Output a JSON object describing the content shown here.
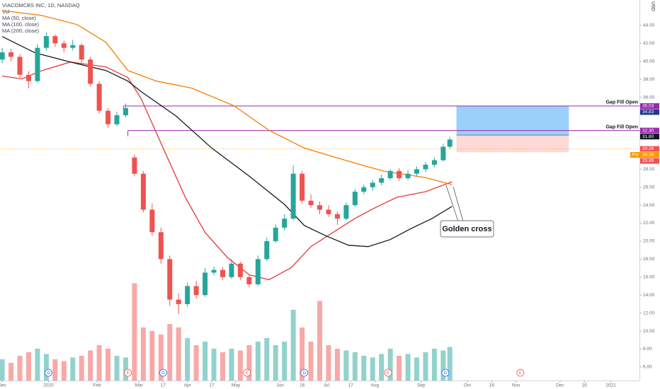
{
  "chart_data": {
    "type": "candlestick",
    "title": "VIACOMCBS INC, 1D, NASDAQ",
    "currency": "USD",
    "xlim": [
      -1,
      289
    ],
    "ylim": [
      4.5,
      46.82
    ],
    "xticks": [
      {
        "value": 0,
        "label": "Dec"
      },
      {
        "value": 21,
        "label": "2020"
      },
      {
        "value": 43,
        "label": "Feb"
      },
      {
        "value": 62,
        "label": "Mar"
      },
      {
        "value": 73,
        "label": "17"
      },
      {
        "value": 84,
        "label": "Apr"
      },
      {
        "value": 95,
        "label": "17"
      },
      {
        "value": 106,
        "label": "May"
      },
      {
        "value": 126,
        "label": "Jun"
      },
      {
        "value": 136,
        "label": "16"
      },
      {
        "value": 147,
        "label": "Jul"
      },
      {
        "value": 158,
        "label": "17"
      },
      {
        "value": 169,
        "label": "Aug"
      },
      {
        "value": 190,
        "label": "Sep"
      },
      {
        "value": 211,
        "label": "Oct"
      },
      {
        "value": 222,
        "label": "16"
      },
      {
        "value": 233,
        "label": "Nov"
      },
      {
        "value": 253,
        "label": "Dec"
      },
      {
        "value": 264,
        "label": "16"
      },
      {
        "value": 276,
        "label": "2021"
      }
    ],
    "yticks": [
      {
        "value": 6,
        "label": "6.00"
      },
      {
        "value": 8,
        "label": "8.00"
      },
      {
        "value": 10,
        "label": "10.00"
      },
      {
        "value": 12,
        "label": "12.00"
      },
      {
        "value": 14,
        "label": "14.00"
      },
      {
        "value": 16,
        "label": "16.00"
      },
      {
        "value": 18,
        "label": "18.00"
      },
      {
        "value": 20,
        "label": "20.00"
      },
      {
        "value": 22,
        "label": "22.00"
      },
      {
        "value": 24,
        "label": "24.00"
      },
      {
        "value": 26,
        "label": "26.00"
      },
      {
        "value": 28,
        "label": "28.00"
      },
      {
        "value": 36,
        "label": "36.00"
      },
      {
        "value": 38,
        "label": "38.00"
      },
      {
        "value": 40,
        "label": "40.00"
      },
      {
        "value": 42,
        "label": "42.00"
      },
      {
        "value": 44,
        "label": "44.00"
      }
    ],
    "up_color": "#26a69a",
    "down_color": "#ef5350",
    "candles": {
      "x": [
        0,
        4,
        8,
        12,
        16,
        20,
        24,
        28,
        32,
        36,
        40,
        44,
        48,
        52,
        56,
        60,
        64,
        68,
        72,
        76,
        80,
        84,
        88,
        92,
        96,
        100,
        104,
        108,
        112,
        116,
        120,
        124,
        128,
        132,
        136,
        140,
        144,
        148,
        152,
        156,
        160,
        164,
        168,
        172,
        176,
        180,
        184,
        188,
        192,
        196,
        200,
        203
      ],
      "open": [
        40.2,
        41.0,
        40.5,
        38.5,
        37.8,
        41.5,
        42.8,
        42.0,
        41.5,
        41.8,
        40.2,
        37.5,
        34.5,
        33.0,
        34.0,
        29.3,
        27.5,
        23.5,
        21.0,
        18.0,
        13.5,
        13.0,
        15.0,
        14.0,
        16.5,
        16.8,
        16.0,
        17.5,
        16.0,
        15.2,
        18.0,
        20.0,
        21.5,
        22.5,
        27.5,
        24.5,
        24.0,
        23.5,
        23.0,
        22.5,
        24.0,
        25.5,
        26.0,
        26.5,
        27.0,
        27.8,
        27.0,
        27.5,
        28.0,
        28.5,
        29.0,
        30.5
      ],
      "high": [
        41.5,
        41.4,
        40.8,
        38.9,
        41.9,
        43.2,
        43.0,
        42.3,
        42.4,
        42.0,
        40.5,
        37.8,
        34.8,
        34.4,
        35.3,
        29.6,
        27.8,
        24.2,
        21.5,
        18.4,
        14.2,
        15.4,
        15.6,
        17.0,
        17.2,
        17.1,
        18.0,
        17.7,
        16.3,
        18.4,
        20.4,
        21.9,
        23.0,
        28.4,
        27.8,
        25.2,
        24.4,
        24.0,
        23.3,
        24.3,
        25.8,
        26.3,
        26.8,
        27.4,
        28.0,
        28.1,
        27.9,
        28.3,
        28.8,
        29.3,
        30.8,
        31.6
      ],
      "low": [
        39.8,
        40.0,
        38.2,
        37.0,
        37.6,
        41.2,
        41.6,
        41.0,
        41.2,
        39.8,
        37.2,
        34.2,
        32.6,
        32.8,
        33.8,
        27.2,
        23.2,
        20.6,
        17.5,
        12.8,
        11.9,
        12.7,
        13.6,
        13.8,
        16.2,
        15.7,
        15.8,
        15.7,
        14.9,
        15.0,
        17.8,
        19.8,
        21.2,
        22.3,
        24.2,
        23.7,
        23.0,
        22.7,
        21.8,
        22.3,
        23.8,
        25.2,
        25.6,
        26.2,
        26.8,
        26.7,
        26.8,
        27.2,
        27.7,
        28.2,
        28.9,
        30.3
      ],
      "close": [
        41.0,
        40.5,
        38.5,
        37.8,
        41.5,
        42.8,
        42.0,
        41.5,
        41.8,
        40.2,
        37.5,
        34.5,
        33.0,
        34.0,
        34.8,
        27.5,
        23.5,
        21.0,
        18.0,
        13.5,
        13.0,
        15.0,
        14.0,
        16.5,
        16.8,
        16.0,
        17.5,
        16.0,
        15.2,
        18.0,
        20.0,
        21.5,
        22.5,
        27.5,
        24.5,
        24.0,
        23.5,
        23.0,
        22.5,
        24.0,
        25.5,
        26.0,
        26.5,
        27.0,
        27.8,
        27.0,
        27.5,
        28.0,
        28.5,
        29.0,
        30.5,
        31.3
      ]
    },
    "volume": {
      "name": "Vol",
      "ylim": [
        0,
        60
      ],
      "values": [
        12,
        10,
        14,
        16,
        18,
        15,
        12,
        11,
        13,
        14,
        17,
        20,
        18,
        14,
        13,
        55,
        30,
        28,
        26,
        32,
        30,
        24,
        20,
        22,
        18,
        16,
        18,
        17,
        20,
        22,
        24,
        20,
        22,
        40,
        30,
        22,
        45,
        20,
        18,
        17,
        16,
        14,
        13,
        15,
        18,
        14,
        15,
        13,
        16,
        18,
        17,
        19
      ]
    },
    "series": [
      {
        "name": "MA (50, close)",
        "color": "#e53935",
        "x": [
          0,
          9,
          18,
          31,
          47,
          57,
          63,
          73,
          83,
          92,
          102,
          112,
          121,
          131,
          140,
          150,
          160,
          169,
          179,
          192,
          204
        ],
        "values": [
          38.36,
          38.04,
          38.98,
          39.92,
          39.38,
          38.2,
          35.85,
          30.36,
          24.88,
          20.96,
          18.22,
          16.26,
          15.71,
          17.04,
          19.39,
          20.96,
          22.53,
          23.7,
          24.88,
          25.5,
          26.6
        ]
      },
      {
        "name": "MA (100, close)",
        "color": "#131722",
        "x": [
          0,
          15,
          31,
          47,
          57,
          63,
          79,
          95,
          112,
          128,
          137,
          147,
          157,
          166,
          176,
          185,
          195,
          204
        ],
        "values": [
          42.75,
          40.94,
          39.92,
          38.98,
          37.8,
          36.63,
          33.89,
          30.36,
          27.23,
          24.09,
          21.74,
          20.57,
          19.55,
          19.39,
          20.18,
          21.35,
          22.53,
          23.86
        ]
      },
      {
        "name": "MA (200, close)",
        "color": "#f57c00",
        "x": [
          0,
          18,
          34,
          47,
          57,
          70,
          86,
          105,
          121,
          137,
          153,
          173,
          192,
          204
        ],
        "values": [
          45.65,
          45.1,
          44.08,
          42.12,
          38.98,
          37.8,
          37.02,
          35.07,
          32.33,
          30.36,
          29.18,
          27.78,
          27.07,
          26.29
        ]
      }
    ],
    "hlines": [
      {
        "value": 35.03,
        "label": "Gap Fill Open",
        "x_start": 55,
        "color": "#9c27b0"
      },
      {
        "value": 32.3,
        "label": "Gap Fill Open",
        "x_start": 57,
        "color": "#9c27b0"
      }
    ],
    "last_price": {
      "value": 30.26,
      "color": "#ff9800"
    },
    "position": {
      "x": [
        206,
        257
      ],
      "entry": 31.8,
      "target": 35.03,
      "stop": 29.89
    },
    "axis_labels": [
      {
        "value": 35.03,
        "label": "35.03",
        "color": "#9c27b0"
      },
      {
        "value": 34.83,
        "label": "34.83",
        "color": "#1e3a8a"
      },
      {
        "value": 32.3,
        "label": "32.30",
        "color": "#9c27b0"
      },
      {
        "value": 31.8,
        "label": "31.80",
        "color": "#131722"
      },
      {
        "value": 30.26,
        "label": "30.26",
        "color": "#ef5350"
      },
      {
        "value": 30.26,
        "label": "30.26",
        "tag": "Pre",
        "color": "#ff9800"
      },
      {
        "value": 29.89,
        "label": "29.89",
        "color": "#ef5350"
      }
    ],
    "events": [
      {
        "x": 21,
        "label": "D",
        "color": "#2962ff"
      },
      {
        "x": 57,
        "label": "E",
        "color": "#ef5350"
      },
      {
        "x": 73,
        "label": "D",
        "color": "#2962ff"
      },
      {
        "x": 111,
        "label": "E",
        "color": "#ef5350"
      },
      {
        "x": 137,
        "label": "D",
        "color": "#2962ff"
      },
      {
        "x": 175,
        "label": "E",
        "color": "#ef5350"
      },
      {
        "x": 201,
        "label": "D",
        "color": "#2962ff"
      },
      {
        "x": 235,
        "label": "E",
        "color": "#ef5350"
      }
    ],
    "annotation": {
      "text": "Golden cross"
    }
  }
}
